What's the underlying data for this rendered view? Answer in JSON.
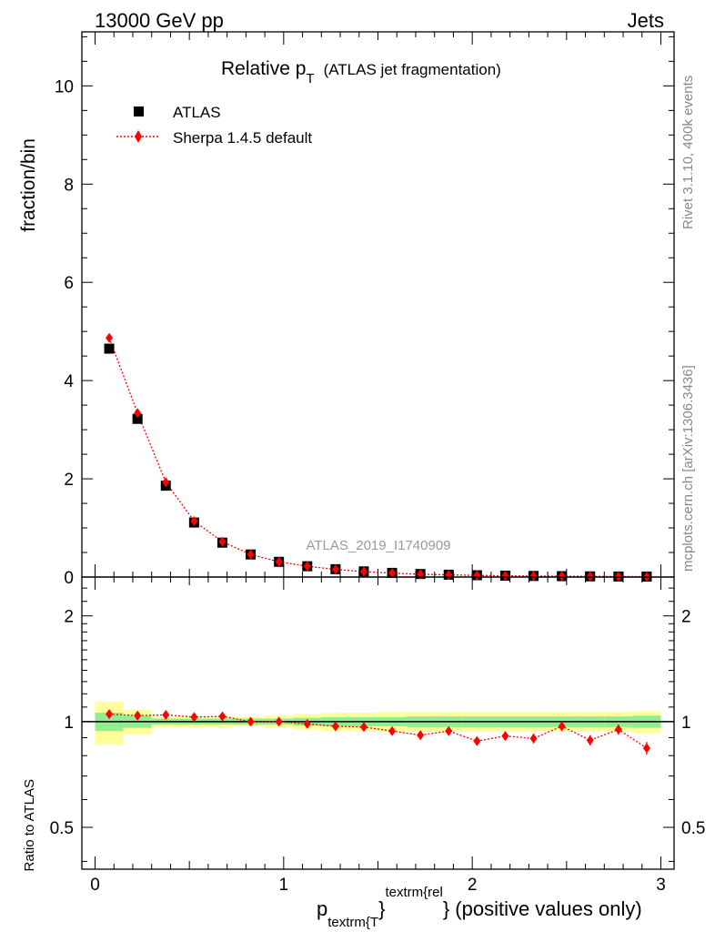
{
  "header": {
    "left": "13000 GeV pp",
    "right": "Jets"
  },
  "title": {
    "main": "Relative p",
    "sub": "T",
    "note": "(ATLAS jet fragmentation)"
  },
  "legend": {
    "data_label": "ATLAS",
    "mc_label": "Sherpa 1.4.5 default"
  },
  "watermark": "ATLAS_2019_I1740909",
  "side_text": {
    "rivet": "Rivet 3.1.10,  400k events",
    "mcplots": "mcplots.cern.ch [arXiv:1306.3436]"
  },
  "axes": {
    "ylabel_main": "fraction/bin",
    "ylabel_ratio": "Ratio to ATLAS",
    "xlabel_p": "p",
    "xlabel_sub": "textrm{T",
    "xlabel_close": "}",
    "xlabel_sup": "textrm{rel",
    "xlabel_rest": "} (positive values only)"
  },
  "colors": {
    "data": "#000000",
    "mc": "#ff0000",
    "band_inner": "#90ee90",
    "band_outer": "#ffff99"
  },
  "chart_data": [
    {
      "type": "scatter",
      "panel": "main",
      "x": [
        0.075,
        0.225,
        0.375,
        0.525,
        0.675,
        0.825,
        0.975,
        1.125,
        1.275,
        1.425,
        1.575,
        1.725,
        1.875,
        2.025,
        2.175,
        2.325,
        2.475,
        2.625,
        2.775,
        2.925
      ],
      "series": [
        {
          "name": "ATLAS",
          "marker": "square",
          "values": [
            4.65,
            3.22,
            1.86,
            1.11,
            0.7,
            0.46,
            0.31,
            0.22,
            0.16,
            0.115,
            0.085,
            0.062,
            0.048,
            0.037,
            0.028,
            0.022,
            0.018,
            0.014,
            0.011,
            0.009
          ]
        },
        {
          "name": "Sherpa 1.4.5 default",
          "marker": "diamond",
          "line": "dotted",
          "values": [
            4.87,
            3.34,
            1.93,
            1.14,
            0.72,
            0.46,
            0.31,
            0.22,
            0.155,
            0.11,
            0.08,
            0.057,
            0.045,
            0.033,
            0.026,
            0.02,
            0.018,
            0.013,
            0.011,
            0.008
          ]
        }
      ],
      "xlim": [
        -0.07,
        3.07
      ],
      "ylim": [
        0,
        11.1
      ],
      "yticks": [
        0,
        2,
        4,
        6,
        8,
        10
      ],
      "ylabel": "fraction/bin"
    },
    {
      "type": "scatter",
      "panel": "ratio",
      "x": [
        0.075,
        0.225,
        0.375,
        0.525,
        0.675,
        0.825,
        0.975,
        1.125,
        1.275,
        1.425,
        1.575,
        1.725,
        1.875,
        2.025,
        2.175,
        2.325,
        2.475,
        2.625,
        2.775,
        2.925
      ],
      "series": [
        {
          "name": "Sherpa 1.4.5 default",
          "marker": "diamond",
          "line": "dotted",
          "values": [
            1.05,
            1.04,
            1.045,
            1.03,
            1.035,
            1.0,
            1.0,
            0.985,
            0.97,
            0.965,
            0.94,
            0.915,
            0.94,
            0.88,
            0.91,
            0.895,
            0.97,
            0.885,
            0.95,
            0.84
          ],
          "errors": [
            0.012,
            0.01,
            0.01,
            0.01,
            0.01,
            0.01,
            0.012,
            0.012,
            0.012,
            0.015,
            0.017,
            0.02,
            0.022,
            0.024,
            0.026,
            0.028,
            0.03,
            0.03,
            0.032,
            0.035
          ]
        }
      ],
      "band_inner": [
        0.06,
        0.04,
        0.02,
        0.02,
        0.02,
        0.02,
        0.02,
        0.025,
        0.03,
        0.03,
        0.03,
        0.035,
        0.035,
        0.035,
        0.035,
        0.035,
        0.035,
        0.035,
        0.035,
        0.04
      ],
      "band_outer": [
        0.14,
        0.08,
        0.035,
        0.035,
        0.035,
        0.03,
        0.04,
        0.05,
        0.06,
        0.06,
        0.065,
        0.065,
        0.065,
        0.065,
        0.065,
        0.065,
        0.065,
        0.065,
        0.065,
        0.07
      ],
      "xlim": [
        -0.07,
        3.07
      ],
      "ylim": [
        0.38,
        2.58
      ],
      "yscale": "log",
      "yticks": [
        0.5,
        1,
        2
      ],
      "xticks": [
        0,
        1,
        2,
        3
      ],
      "ylabel": "Ratio to ATLAS"
    }
  ]
}
